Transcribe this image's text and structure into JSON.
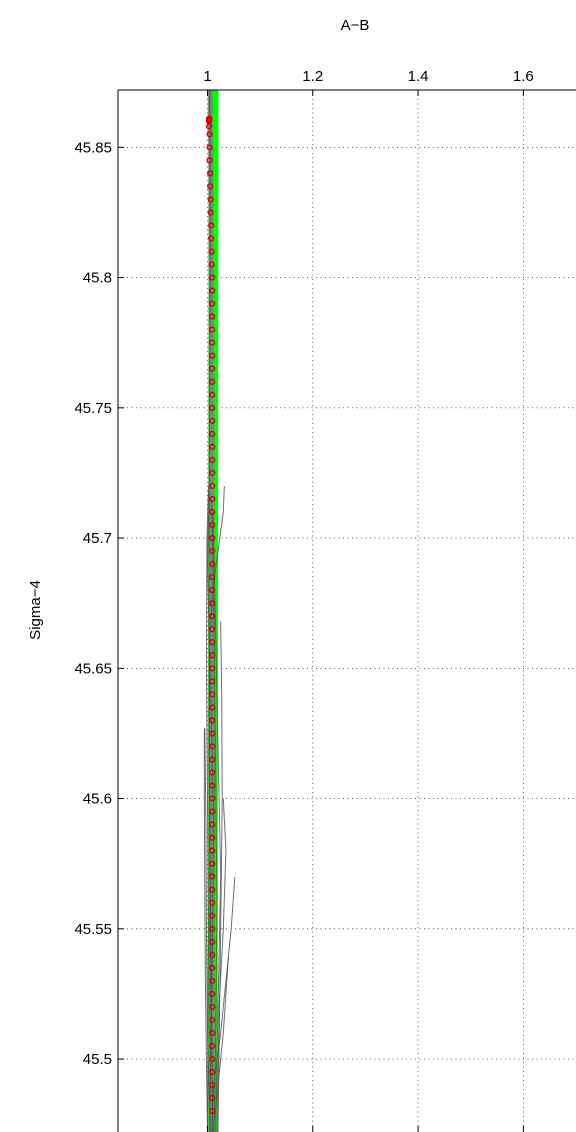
{
  "chart_data": {
    "type": "line",
    "title": "",
    "xlabel": "A−B",
    "ylabel": "Sigma−4",
    "xlim": [
      0.83,
      1.7
    ],
    "ylim": [
      45.872,
      45.472
    ],
    "y_reversed": true,
    "x_axis_position": "top",
    "grid": true,
    "legend": "none",
    "x_ticks": [
      {
        "value": 1,
        "label": "1"
      },
      {
        "value": 1.2,
        "label": "1.2"
      },
      {
        "value": 1.4,
        "label": "1.4"
      },
      {
        "value": 1.6,
        "label": "1.6"
      }
    ],
    "y_ticks": [
      {
        "value": 45.5,
        "label": "45.5"
      },
      {
        "value": 45.55,
        "label": "45.55"
      },
      {
        "value": 45.6,
        "label": "45.6"
      },
      {
        "value": 45.65,
        "label": "45.65"
      },
      {
        "value": 45.7,
        "label": "45.7"
      },
      {
        "value": 45.75,
        "label": "45.75"
      },
      {
        "value": 45.8,
        "label": "45.8"
      },
      {
        "value": 45.85,
        "label": "45.85"
      }
    ],
    "colors": {
      "band": "#00ff00",
      "profiles": "#555555",
      "median": "#808080",
      "markers": "#dd0000"
    },
    "band": {
      "x_left": [
        1.0,
        1.002
      ],
      "x_right": [
        1.019,
        1.021
      ],
      "y": [
        45.472,
        45.872
      ]
    },
    "series": [
      {
        "style": "median-line",
        "x": [
          1.008,
          1.009,
          1.01,
          1.009,
          1.008,
          1.007,
          1.006,
          1.005
        ],
        "y": [
          45.472,
          45.55,
          45.63,
          45.7,
          45.75,
          45.8,
          45.85,
          45.872
        ]
      },
      {
        "style": "profile",
        "x": [
          1.008,
          1.012,
          1.025,
          1.035,
          1.045,
          1.052
        ],
        "y": [
          45.472,
          45.49,
          45.51,
          45.53,
          45.55,
          45.57
        ]
      },
      {
        "style": "profile",
        "x": [
          1.01,
          1.02,
          1.03,
          1.035,
          1.04
        ],
        "y": [
          45.472,
          45.49,
          45.51,
          45.525,
          45.54
        ]
      },
      {
        "style": "profile",
        "x": [
          1.0,
          0.998,
          0.996,
          0.995,
          0.994,
          0.994
        ],
        "y": [
          45.472,
          45.5,
          45.53,
          45.56,
          45.6,
          45.627
        ]
      },
      {
        "style": "profile",
        "x": [
          1.005,
          1.0,
          0.998,
          0.997,
          0.995
        ],
        "y": [
          45.472,
          45.51,
          45.55,
          45.59,
          45.627
        ]
      },
      {
        "style": "profile",
        "x": [
          1.018,
          1.022,
          1.03,
          1.035,
          1.03
        ],
        "y": [
          45.472,
          45.52,
          45.55,
          45.58,
          45.6
        ]
      },
      {
        "style": "profile",
        "x": [
          1.02,
          1.025,
          1.028,
          1.027,
          1.025
        ],
        "y": [
          45.472,
          45.55,
          45.6,
          45.64,
          45.668
        ]
      },
      {
        "style": "profile",
        "x": [
          1.015,
          1.02,
          1.025,
          1.02,
          1.015,
          1.01
        ],
        "y": [
          45.472,
          45.52,
          45.57,
          45.62,
          45.67,
          45.71
        ]
      },
      {
        "style": "profile",
        "x": [
          1.01,
          1.006,
          1.003,
          1.004,
          1.01,
          1.02,
          1.03,
          1.032
        ],
        "y": [
          45.472,
          45.55,
          45.62,
          45.66,
          45.68,
          45.695,
          45.71,
          45.72
        ]
      },
      {
        "style": "profile",
        "x": [
          1.0,
          1.002,
          1.0,
          0.998,
          0.999,
          1.002
        ],
        "y": [
          45.472,
          45.55,
          45.6,
          45.65,
          45.7,
          45.72
        ]
      },
      {
        "style": "profile",
        "x": [
          1.012,
          1.015,
          1.018,
          1.015,
          1.012,
          1.008
        ],
        "y": [
          45.472,
          45.5,
          45.56,
          45.62,
          45.67,
          45.715
        ]
      },
      {
        "style": "profile",
        "x": [
          1.004,
          1.008,
          1.012,
          1.006,
          1.0,
          1.003
        ],
        "y": [
          45.472,
          45.52,
          45.59,
          45.64,
          45.69,
          45.718
        ]
      },
      {
        "style": "profile",
        "x": [
          1.005,
          1.004,
          1.003,
          1.004,
          1.005,
          1.005,
          1.004,
          1.004
        ],
        "y": [
          45.472,
          45.6,
          45.7,
          45.75,
          45.8,
          45.85,
          45.872,
          45.872
        ]
      }
    ],
    "markers": {
      "x": [
        1.009,
        1.009,
        1.009,
        1.009,
        1.009,
        1.009,
        1.009,
        1.009,
        1.009,
        1.009,
        1.009,
        1.009,
        1.009,
        1.009,
        1.009,
        1.009,
        1.009,
        1.009,
        1.009,
        1.009,
        1.009,
        1.009,
        1.009,
        1.009,
        1.009,
        1.009,
        1.009,
        1.009,
        1.009,
        1.009,
        1.009,
        1.009,
        1.009,
        1.009,
        1.009,
        1.009,
        1.009,
        1.009,
        1.009,
        1.009,
        1.009,
        1.009,
        1.009,
        1.009,
        1.009,
        1.009,
        1.009,
        1.009,
        1.009,
        1.009,
        1.009,
        1.009,
        1.009,
        1.009,
        1.009,
        1.009,
        1.009,
        1.009,
        1.009,
        1.009,
        1.009,
        1.009,
        1.009,
        1.009,
        1.009,
        1.008,
        1.008,
        1.007,
        1.007,
        1.006,
        1.006,
        1.005,
        1.005,
        1.004,
        1.004,
        1.004,
        1.003,
        1.003,
        1.003,
        1.003
      ],
      "y": [
        45.48,
        45.485,
        45.49,
        45.495,
        45.5,
        45.505,
        45.51,
        45.515,
        45.52,
        45.525,
        45.53,
        45.535,
        45.54,
        45.545,
        45.55,
        45.555,
        45.56,
        45.565,
        45.57,
        45.575,
        45.58,
        45.585,
        45.59,
        45.595,
        45.6,
        45.605,
        45.61,
        45.615,
        45.62,
        45.625,
        45.63,
        45.635,
        45.64,
        45.645,
        45.65,
        45.655,
        45.66,
        45.665,
        45.67,
        45.675,
        45.68,
        45.685,
        45.69,
        45.695,
        45.7,
        45.705,
        45.71,
        45.715,
        45.72,
        45.725,
        45.73,
        45.735,
        45.74,
        45.745,
        45.75,
        45.755,
        45.76,
        45.765,
        45.77,
        45.775,
        45.78,
        45.785,
        45.79,
        45.795,
        45.8,
        45.805,
        45.81,
        45.815,
        45.82,
        45.825,
        45.83,
        45.835,
        45.84,
        45.845,
        45.85,
        45.855,
        45.858,
        45.86,
        45.8605,
        45.861
      ]
    }
  }
}
